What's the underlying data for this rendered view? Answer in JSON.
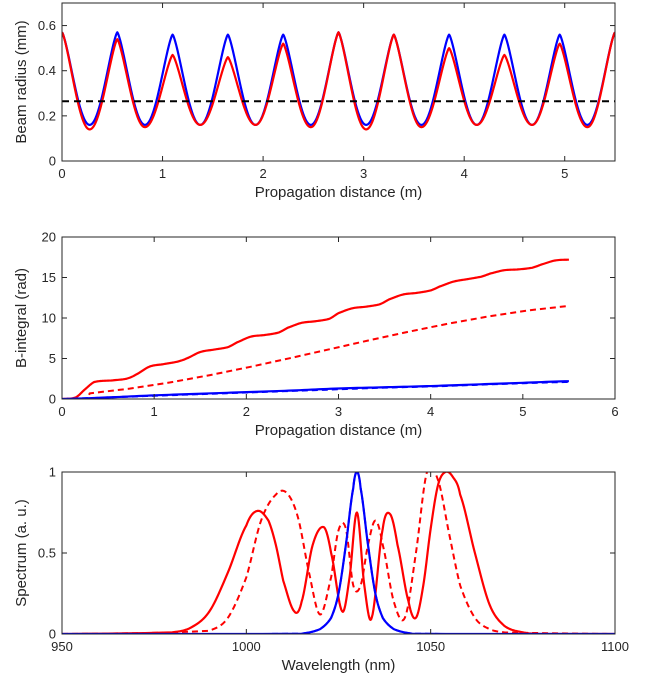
{
  "chart_data": [
    {
      "type": "line",
      "xlabel": "Propagation distance (m)",
      "ylabel": "Beam radius (mm)",
      "xlim": [
        0,
        5.5
      ],
      "ylim": [
        0,
        0.7
      ],
      "xticks": [
        0,
        1,
        2,
        3,
        4,
        5
      ],
      "yticks": [
        0,
        0.2,
        0.4,
        0.6
      ],
      "xtick_labels": [
        "0",
        "1",
        "2",
        "3",
        "4",
        "5"
      ],
      "ytick_labels": [
        "0",
        "0.2",
        "0.4",
        "0.6"
      ],
      "grid": false,
      "period_m": 0.55,
      "series": [
        {
          "color": "#0000ff",
          "style": "solid",
          "x": [
            0,
            0.275,
            0.55,
            0.825,
            1.1,
            1.375,
            1.65,
            1.925,
            2.2,
            2.475,
            2.75,
            3.025,
            3.3,
            3.575,
            3.85,
            4.125,
            4.4,
            4.675,
            4.95,
            5.225,
            5.5
          ],
          "y": [
            0.57,
            0.16,
            0.57,
            0.16,
            0.56,
            0.16,
            0.56,
            0.16,
            0.56,
            0.16,
            0.57,
            0.16,
            0.56,
            0.16,
            0.56,
            0.16,
            0.56,
            0.16,
            0.56,
            0.16,
            0.57
          ]
        },
        {
          "color": "#ff0000",
          "style": "solid",
          "x": [
            0,
            0.275,
            0.55,
            0.825,
            1.1,
            1.375,
            1.65,
            1.925,
            2.2,
            2.475,
            2.75,
            3.025,
            3.3,
            3.575,
            3.85,
            4.125,
            4.4,
            4.675,
            4.95,
            5.225,
            5.5
          ],
          "y": [
            0.57,
            0.14,
            0.54,
            0.15,
            0.47,
            0.16,
            0.46,
            0.16,
            0.52,
            0.15,
            0.57,
            0.14,
            0.56,
            0.15,
            0.5,
            0.16,
            0.47,
            0.16,
            0.52,
            0.15,
            0.57
          ]
        },
        {
          "color": "#000000",
          "style": "dashed",
          "x": [
            0,
            5.5
          ],
          "y": [
            0.265,
            0.265
          ]
        }
      ]
    },
    {
      "type": "line",
      "xlabel": "Propagation distance (m)",
      "ylabel": "B-integral (rad)",
      "xlim": [
        0,
        6
      ],
      "ylim": [
        0,
        20
      ],
      "xticks": [
        0,
        1,
        2,
        3,
        4,
        5,
        6
      ],
      "yticks": [
        0,
        5,
        10,
        15,
        20
      ],
      "xtick_labels": [
        "0",
        "1",
        "2",
        "3",
        "4",
        "5",
        "6"
      ],
      "ytick_labels": [
        "0",
        "5",
        "10",
        "15",
        "20"
      ],
      "grid": false,
      "series": [
        {
          "color": "#ff0000",
          "style": "solid",
          "x": [
            0,
            0.15,
            0.25,
            0.35,
            0.55,
            0.7,
            0.8,
            0.95,
            1.1,
            1.25,
            1.35,
            1.5,
            1.65,
            1.8,
            1.9,
            2.05,
            2.2,
            2.35,
            2.45,
            2.6,
            2.75,
            2.9,
            3.0,
            3.15,
            3.3,
            3.45,
            3.55,
            3.7,
            3.85,
            4.0,
            4.1,
            4.25,
            4.4,
            4.55,
            4.65,
            4.8,
            4.95,
            5.1,
            5.2,
            5.35,
            5.5
          ],
          "y": [
            0,
            0.2,
            1.2,
            2.1,
            2.3,
            2.5,
            3.0,
            4.0,
            4.3,
            4.6,
            5.0,
            5.8,
            6.1,
            6.4,
            7.0,
            7.7,
            7.9,
            8.2,
            8.8,
            9.4,
            9.6,
            9.9,
            10.6,
            11.2,
            11.4,
            11.7,
            12.3,
            12.9,
            13.1,
            13.4,
            13.9,
            14.5,
            14.8,
            15.1,
            15.5,
            15.9,
            16.0,
            16.2,
            16.6,
            17.1,
            17.2
          ]
        },
        {
          "color": "#ff0000",
          "style": "dashed",
          "x": [
            0,
            0.15,
            0.3,
            5.5
          ],
          "y": [
            0,
            0.1,
            0.7,
            11.5
          ]
        },
        {
          "color": "#0000ff",
          "style": "solid",
          "x": [
            0,
            0.15,
            0.5,
            1.0,
            1.5,
            2.0,
            2.5,
            3.0,
            3.5,
            4.0,
            4.5,
            5.0,
            5.5
          ],
          "y": [
            0,
            0.05,
            0.2,
            0.45,
            0.65,
            0.85,
            1.05,
            1.3,
            1.45,
            1.6,
            1.8,
            2.0,
            2.2
          ]
        },
        {
          "color": "#0000ff",
          "style": "dashed",
          "x": [
            0,
            0.15,
            0.5,
            1.0,
            1.5,
            2.0,
            2.5,
            3.0,
            3.5,
            4.0,
            4.5,
            5.0,
            5.5
          ],
          "y": [
            0,
            0.05,
            0.2,
            0.4,
            0.6,
            0.8,
            1.0,
            1.2,
            1.4,
            1.55,
            1.75,
            1.95,
            2.1
          ]
        }
      ]
    },
    {
      "type": "line",
      "xlabel": "Wavelength (nm)",
      "ylabel": "Spectrum (a. u.)",
      "xlim": [
        950,
        1100
      ],
      "ylim": [
        0,
        1
      ],
      "xticks": [
        950,
        1000,
        1050,
        1100
      ],
      "yticks": [
        0,
        0.5,
        1
      ],
      "xtick_labels": [
        "950",
        "1000",
        "1050",
        "1100"
      ],
      "ytick_labels": [
        "0",
        "0.5",
        "1"
      ],
      "grid": false,
      "series": [
        {
          "color": "#ff0000",
          "style": "solid",
          "x": [
            950,
            980,
            985,
            990,
            995,
            1000,
            1003,
            1006,
            1008,
            1010,
            1013,
            1015,
            1018,
            1021,
            1023,
            1026,
            1028,
            1030,
            1032,
            1034,
            1037,
            1039,
            1041,
            1044,
            1046,
            1048,
            1050,
            1052,
            1054,
            1056,
            1058,
            1062,
            1066,
            1070,
            1075,
            1080,
            1100
          ],
          "y": [
            0,
            0.01,
            0.04,
            0.14,
            0.38,
            0.67,
            0.76,
            0.7,
            0.55,
            0.33,
            0.14,
            0.2,
            0.55,
            0.66,
            0.5,
            0.14,
            0.35,
            0.75,
            0.3,
            0.1,
            0.65,
            0.74,
            0.55,
            0.2,
            0.1,
            0.3,
            0.65,
            0.92,
            1.0,
            0.97,
            0.86,
            0.5,
            0.18,
            0.05,
            0.01,
            0,
            0
          ]
        },
        {
          "color": "#ff0000",
          "style": "dashed",
          "x": [
            950,
            990,
            995,
            1000,
            1004,
            1008,
            1011,
            1014,
            1017,
            1020,
            1023,
            1025,
            1027,
            1029,
            1031,
            1033,
            1035,
            1037,
            1040,
            1043,
            1046,
            1049,
            1052,
            1055,
            1058,
            1062,
            1066,
            1070,
            1100
          ],
          "y": [
            0,
            0.02,
            0.1,
            0.35,
            0.7,
            0.86,
            0.87,
            0.72,
            0.38,
            0.12,
            0.35,
            0.64,
            0.65,
            0.3,
            0.3,
            0.55,
            0.7,
            0.55,
            0.2,
            0.1,
            0.5,
            1.0,
            0.95,
            0.62,
            0.3,
            0.1,
            0.03,
            0.01,
            0
          ]
        },
        {
          "color": "#0000ff",
          "style": "solid",
          "x": [
            950,
            1015,
            1020,
            1023,
            1025,
            1027,
            1029,
            1030,
            1031,
            1033,
            1035,
            1037,
            1040,
            1045,
            1100
          ],
          "y": [
            0,
            0.002,
            0.03,
            0.1,
            0.25,
            0.55,
            0.9,
            1.0,
            0.9,
            0.55,
            0.25,
            0.1,
            0.03,
            0.002,
            0
          ]
        },
        {
          "color": "#0000ff",
          "style": "dashed",
          "x": [
            950,
            1015,
            1020,
            1023,
            1025,
            1027,
            1029,
            1030,
            1031,
            1033,
            1035,
            1037,
            1040,
            1045,
            1100
          ],
          "y": [
            0,
            0.002,
            0.03,
            0.1,
            0.25,
            0.55,
            0.9,
            1.0,
            0.9,
            0.55,
            0.25,
            0.1,
            0.03,
            0.002,
            0
          ]
        }
      ]
    }
  ]
}
